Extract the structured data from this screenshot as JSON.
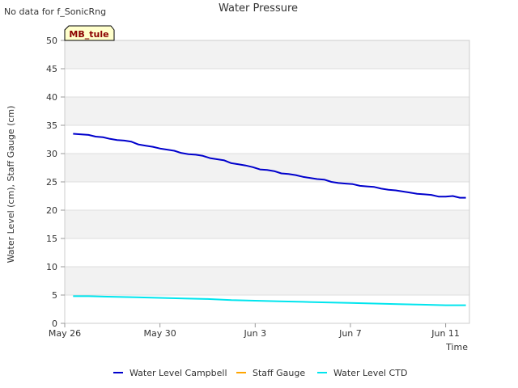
{
  "notice": "No data for f_SonicRng",
  "site_label": "MB_tule",
  "colors": {
    "background": "#ffffff",
    "band": "#f2f2f2",
    "grid": "#dddddd",
    "label_box": "#ffffcc",
    "label_text": "#8b0000"
  },
  "chart_data": {
    "type": "line",
    "title": "Water Pressure",
    "xlabel": "Time",
    "ylabel": "Water Level (cm), Staff Gauge (cm)",
    "ylim": [
      0,
      50
    ],
    "yticks": [
      0,
      5,
      10,
      15,
      20,
      25,
      30,
      35,
      40,
      45,
      50
    ],
    "xlim_days": [
      0,
      17
    ],
    "xticks": [
      {
        "label": "May 26",
        "day": 0
      },
      {
        "label": "May 30",
        "day": 4
      },
      {
        "label": "Jun 3",
        "day": 8
      },
      {
        "label": "Jun 7",
        "day": 12
      },
      {
        "label": "Jun 11",
        "day": 16
      }
    ],
    "grid": true,
    "legend_position": "bottom",
    "series": [
      {
        "name": "Water Level Campbell",
        "color": "#0000cc",
        "x": [
          0.35,
          0.7,
          1.0,
          1.3,
          1.6,
          1.9,
          2.2,
          2.5,
          2.8,
          3.1,
          3.4,
          3.7,
          4.0,
          4.3,
          4.6,
          4.9,
          5.2,
          5.5,
          5.8,
          6.1,
          6.4,
          6.7,
          7.0,
          7.3,
          7.6,
          7.9,
          8.2,
          8.5,
          8.8,
          9.1,
          9.4,
          9.7,
          10.0,
          10.3,
          10.6,
          10.9,
          11.2,
          11.5,
          11.8,
          12.1,
          12.4,
          12.7,
          13.0,
          13.3,
          13.6,
          13.9,
          14.2,
          14.5,
          14.8,
          15.1,
          15.4,
          15.7,
          16.0,
          16.3,
          16.6,
          16.85
        ],
        "values": [
          33.5,
          33.4,
          33.3,
          33.0,
          32.9,
          32.6,
          32.4,
          32.3,
          32.1,
          31.6,
          31.4,
          31.2,
          30.9,
          30.7,
          30.5,
          30.1,
          29.9,
          29.8,
          29.6,
          29.2,
          29.0,
          28.8,
          28.3,
          28.1,
          27.9,
          27.6,
          27.2,
          27.1,
          26.9,
          26.5,
          26.4,
          26.2,
          25.9,
          25.7,
          25.5,
          25.4,
          25.0,
          24.8,
          24.7,
          24.6,
          24.3,
          24.2,
          24.1,
          23.8,
          23.6,
          23.5,
          23.3,
          23.1,
          22.9,
          22.8,
          22.7,
          22.4,
          22.4,
          22.5,
          22.2,
          22.2
        ]
      },
      {
        "name": "Staff Gauge",
        "color": "#ffa500",
        "x": [],
        "values": []
      },
      {
        "name": "Water Level CTD",
        "color": "#00e5ee",
        "x": [
          0.35,
          1.0,
          2.0,
          3.0,
          4.0,
          5.0,
          6.0,
          7.0,
          8.0,
          9.0,
          10.0,
          11.0,
          12.0,
          13.0,
          14.0,
          15.0,
          16.0,
          16.85
        ],
        "values": [
          4.8,
          4.8,
          4.7,
          4.6,
          4.5,
          4.4,
          4.3,
          4.1,
          4.0,
          3.9,
          3.8,
          3.7,
          3.6,
          3.5,
          3.4,
          3.3,
          3.2,
          3.2
        ]
      }
    ]
  }
}
